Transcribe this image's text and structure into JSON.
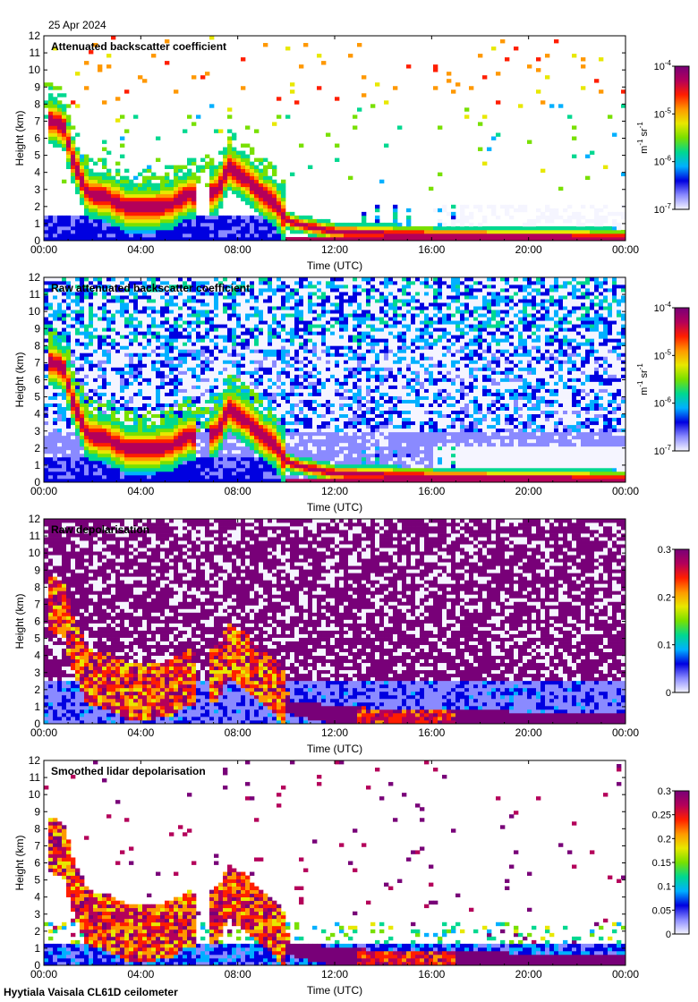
{
  "date": "25 Apr 2024",
  "footer": "Hyytiala Vaisala CL61D ceilometer",
  "colormap": [
    "#f5f5ff",
    "#8a8aff",
    "#0000e0",
    "#00b0ff",
    "#00d890",
    "#78e000",
    "#e8e800",
    "#ff9800",
    "#ff1e00",
    "#b4005a",
    "#780078"
  ],
  "chart_data": [
    {
      "type": "heatmap",
      "title": "Attenuated backscatter coefficient",
      "xlabel": "Time (UTC)",
      "ylabel": "Height (km)",
      "x_ticks": [
        "00:00",
        "04:00",
        "08:00",
        "12:00",
        "16:00",
        "20:00",
        "00:00"
      ],
      "y_ticks": [
        "0",
        "1",
        "2",
        "3",
        "4",
        "5",
        "6",
        "7",
        "8",
        "9",
        "10",
        "11",
        "12"
      ],
      "xlim": [
        0,
        24
      ],
      "ylim": [
        0,
        12
      ],
      "colorbar": {
        "scale": "log",
        "range": [
          1e-07,
          0.0001
        ],
        "tick_base": [
          "10",
          "10",
          "10",
          "10"
        ],
        "tick_exp": [
          "-7",
          "-6",
          "-5",
          "-4"
        ],
        "unit_parts": [
          "m",
          "-1",
          " sr",
          "-1"
        ]
      }
    },
    {
      "type": "heatmap",
      "title": "Raw attenuated backscatter coefficient",
      "xlabel": "Time (UTC)",
      "ylabel": "Height (km)",
      "x_ticks": [
        "00:00",
        "04:00",
        "08:00",
        "12:00",
        "16:00",
        "20:00",
        "00:00"
      ],
      "y_ticks": [
        "0",
        "1",
        "2",
        "3",
        "4",
        "5",
        "6",
        "7",
        "8",
        "9",
        "10",
        "11",
        "12"
      ],
      "xlim": [
        0,
        24
      ],
      "ylim": [
        0,
        12
      ],
      "colorbar": {
        "scale": "log",
        "range": [
          1e-07,
          0.0001
        ],
        "tick_base": [
          "10",
          "10",
          "10",
          "10"
        ],
        "tick_exp": [
          "-7",
          "-6",
          "-5",
          "-4"
        ],
        "unit_parts": [
          "m",
          "-1",
          " sr",
          "-1"
        ]
      }
    },
    {
      "type": "heatmap",
      "title": "Raw depolarisation",
      "xlabel": "Time (UTC)",
      "ylabel": "Height (km)",
      "x_ticks": [
        "00:00",
        "04:00",
        "08:00",
        "12:00",
        "16:00",
        "20:00",
        "00:00"
      ],
      "y_ticks": [
        "0",
        "1",
        "2",
        "3",
        "4",
        "5",
        "6",
        "7",
        "8",
        "9",
        "10",
        "11",
        "12"
      ],
      "xlim": [
        0,
        24
      ],
      "ylim": [
        0,
        12
      ],
      "colorbar": {
        "scale": "linear",
        "range": [
          0,
          0.3
        ],
        "ticks": [
          "0",
          "0.1",
          "0.2",
          "0.3"
        ]
      }
    },
    {
      "type": "heatmap",
      "title": "Smoothed lidar depolarisation",
      "xlabel": "Time (UTC)",
      "ylabel": "Height (km)",
      "x_ticks": [
        "00:00",
        "04:00",
        "08:00",
        "12:00",
        "16:00",
        "20:00",
        "00:00"
      ],
      "y_ticks": [
        "0",
        "1",
        "2",
        "3",
        "4",
        "5",
        "6",
        "7",
        "8",
        "9",
        "10",
        "11",
        "12"
      ],
      "xlim": [
        0,
        24
      ],
      "ylim": [
        0,
        12
      ],
      "colorbar": {
        "scale": "linear",
        "range": [
          0,
          0.3
        ],
        "ticks": [
          "0",
          "0.05",
          "0.1",
          "0.15",
          "0.2",
          "0.25",
          "0.3"
        ]
      }
    }
  ]
}
